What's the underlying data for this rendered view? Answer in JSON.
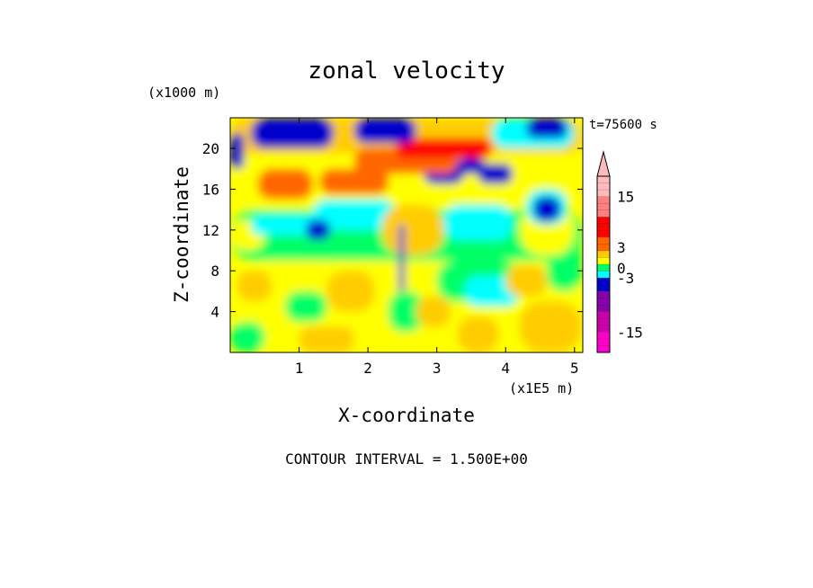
{
  "chart_data": {
    "type": "heatmap",
    "title": "zonal velocity",
    "xlabel": "X-coordinate",
    "ylabel": "Z-coordinate",
    "x_unit": "(x1E5 m)",
    "y_unit": "(x1000 m)",
    "time_label": "t=75600 s",
    "footer": "CONTOUR INTERVAL = 1.500E+00",
    "xlim": [
      0,
      5.12
    ],
    "ylim": [
      0,
      23
    ],
    "x_ticks": [
      "1",
      "2",
      "3",
      "4",
      "5"
    ],
    "x_tick_values": [
      1,
      2,
      3,
      4,
      5
    ],
    "y_ticks": [
      "4",
      "8",
      "12",
      "16",
      "20"
    ],
    "y_tick_values": [
      4,
      8,
      12,
      16,
      20
    ],
    "contour_interval": 1.5,
    "colorbar": {
      "labels": [
        "15",
        "3",
        "0",
        "-3",
        "-15"
      ],
      "label_values": [
        15,
        3,
        0,
        -3,
        -15
      ],
      "vmin": -19.5,
      "vmax": 19.5,
      "extend": "max",
      "bands": [
        {
          "from": -19.5,
          "to": -15,
          "color": "#ff00cc"
        },
        {
          "from": -15,
          "to": -10.5,
          "color": "#cc00aa"
        },
        {
          "from": -10.5,
          "to": -6,
          "color": "#8800aa"
        },
        {
          "from": -6,
          "to": -3,
          "color": "#0000cc"
        },
        {
          "from": -3,
          "to": -1.5,
          "color": "#00ffff"
        },
        {
          "from": -1.5,
          "to": 0,
          "color": "#00ff66"
        },
        {
          "from": 0,
          "to": 1.5,
          "color": "#ffff00"
        },
        {
          "from": 1.5,
          "to": 3,
          "color": "#ffcc00"
        },
        {
          "from": 3,
          "to": 6,
          "color": "#ff6600"
        },
        {
          "from": 6,
          "to": 10.5,
          "color": "#ff0000"
        },
        {
          "from": 10.5,
          "to": 15,
          "color": "#ff8080"
        },
        {
          "from": 15,
          "to": 19.5,
          "color": "#ffbbbb"
        }
      ],
      "extend_color": "#ffbbbb"
    },
    "field_colors": {
      "blue": "#0000cc",
      "cyan": "#00ffff",
      "green": "#00ff66",
      "yellow": "#ffff00",
      "orange": "#ffcc00",
      "darkorange": "#ff6600",
      "red": "#ff0000"
    },
    "field_regions": [
      {
        "x": 0.0,
        "z": 19.5,
        "w": 5.12,
        "h": 3.5,
        "color": "orange"
      },
      {
        "x": 0.0,
        "z": 14.0,
        "w": 5.12,
        "h": 5.5,
        "color": "yellow"
      },
      {
        "x": 0.0,
        "z": 9.0,
        "w": 5.12,
        "h": 5.0,
        "color": "green"
      },
      {
        "x": 0.0,
        "z": 0.0,
        "w": 5.12,
        "h": 9.0,
        "color": "yellow"
      },
      {
        "x": 0.0,
        "z": 0.0,
        "w": 0.5,
        "h": 3.0,
        "color": "green"
      },
      {
        "x": 1.0,
        "z": 0.0,
        "w": 0.8,
        "h": 2.5,
        "color": "orange"
      },
      {
        "x": 3.3,
        "z": 0.0,
        "w": 0.6,
        "h": 3.5,
        "color": "orange"
      },
      {
        "x": 4.2,
        "z": 0.0,
        "w": 0.9,
        "h": 5.0,
        "color": "orange"
      },
      {
        "x": 0.8,
        "z": 3.0,
        "w": 0.6,
        "h": 3.0,
        "color": "green"
      },
      {
        "x": 2.3,
        "z": 2.0,
        "w": 0.5,
        "h": 4.0,
        "color": "green"
      },
      {
        "x": 3.0,
        "z": 5.0,
        "w": 1.2,
        "h": 4.0,
        "color": "green"
      },
      {
        "x": 3.4,
        "z": 4.5,
        "w": 0.8,
        "h": 3.0,
        "color": "cyan"
      },
      {
        "x": 4.6,
        "z": 6.0,
        "w": 0.5,
        "h": 5.0,
        "color": "green"
      },
      {
        "x": 0.0,
        "z": 10.0,
        "w": 0.5,
        "h": 3.0,
        "color": "yellow"
      },
      {
        "x": 0.3,
        "z": 11.5,
        "w": 1.0,
        "h": 2.0,
        "color": "cyan"
      },
      {
        "x": 1.2,
        "z": 12.0,
        "w": 1.2,
        "h": 3.0,
        "color": "cyan"
      },
      {
        "x": 1.1,
        "z": 11.0,
        "w": 0.35,
        "h": 2.0,
        "color": "blue"
      },
      {
        "x": 2.2,
        "z": 9.5,
        "w": 0.9,
        "h": 5.0,
        "color": "orange"
      },
      {
        "x": 2.45,
        "z": 6.0,
        "w": 0.08,
        "h": 6.5,
        "color": "blue"
      },
      {
        "x": 3.1,
        "z": 11.0,
        "w": 1.0,
        "h": 3.5,
        "color": "cyan"
      },
      {
        "x": 4.2,
        "z": 9.5,
        "w": 0.8,
        "h": 5.0,
        "color": "yellow"
      },
      {
        "x": 4.3,
        "z": 12.5,
        "w": 0.6,
        "h": 3.5,
        "color": "cyan"
      },
      {
        "x": 4.4,
        "z": 12.8,
        "w": 0.4,
        "h": 2.5,
        "color": "blue"
      },
      {
        "x": 3.6,
        "z": 16.5,
        "w": 0.5,
        "h": 2.0,
        "color": "blue"
      },
      {
        "x": 2.8,
        "z": 16.5,
        "w": 0.6,
        "h": 2.5,
        "color": "blue"
      },
      {
        "x": 3.3,
        "z": 17.5,
        "w": 0.4,
        "h": 1.5,
        "color": "blue"
      },
      {
        "x": 0.4,
        "z": 15.0,
        "w": 0.8,
        "h": 3.0,
        "color": "darkorange"
      },
      {
        "x": 1.3,
        "z": 15.5,
        "w": 1.0,
        "h": 2.5,
        "color": "darkorange"
      },
      {
        "x": 1.8,
        "z": 17.5,
        "w": 1.5,
        "h": 2.5,
        "color": "darkorange"
      },
      {
        "x": 2.4,
        "z": 19.0,
        "w": 1.4,
        "h": 2.0,
        "color": "red"
      },
      {
        "x": 0.0,
        "z": 18.0,
        "w": 0.2,
        "h": 3.5,
        "color": "blue"
      },
      {
        "x": 0.3,
        "z": 20.0,
        "w": 1.2,
        "h": 3.0,
        "color": "blue"
      },
      {
        "x": 1.8,
        "z": 20.5,
        "w": 0.9,
        "h": 2.5,
        "color": "blue"
      },
      {
        "x": 3.8,
        "z": 20.0,
        "w": 1.2,
        "h": 3.0,
        "color": "cyan"
      },
      {
        "x": 4.3,
        "z": 21.0,
        "w": 0.6,
        "h": 2.0,
        "color": "blue"
      },
      {
        "x": 0.1,
        "z": 5.0,
        "w": 0.5,
        "h": 3.0,
        "color": "orange"
      },
      {
        "x": 1.4,
        "z": 4.0,
        "w": 0.7,
        "h": 4.0,
        "color": "orange"
      },
      {
        "x": 2.7,
        "z": 2.5,
        "w": 0.5,
        "h": 3.0,
        "color": "orange"
      },
      {
        "x": 4.0,
        "z": 5.5,
        "w": 0.6,
        "h": 3.0,
        "color": "orange"
      }
    ]
  }
}
